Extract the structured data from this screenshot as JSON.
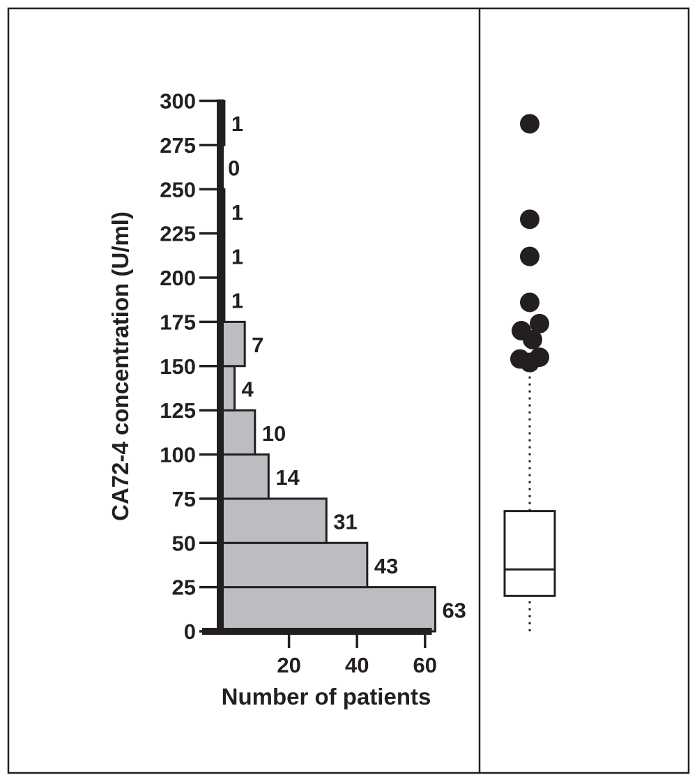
{
  "chart_data": [
    {
      "type": "bar",
      "orientation": "horizontal",
      "title": "",
      "xlabel": "Number of patients",
      "ylabel": "CA72-4 concentration (U/ml)",
      "bins": [
        {
          "from": 0,
          "to": 25,
          "count": 63,
          "label": "63"
        },
        {
          "from": 25,
          "to": 50,
          "count": 43,
          "label": "43"
        },
        {
          "from": 50,
          "to": 75,
          "count": 31,
          "label": "31"
        },
        {
          "from": 75,
          "to": 100,
          "count": 14,
          "label": "14"
        },
        {
          "from": 100,
          "to": 125,
          "count": 10,
          "label": "10"
        },
        {
          "from": 125,
          "to": 150,
          "count": 4,
          "label": "4"
        },
        {
          "from": 150,
          "to": 175,
          "count": 7,
          "label": "7"
        },
        {
          "from": 175,
          "to": 200,
          "count": 1,
          "label": "1"
        },
        {
          "from": 200,
          "to": 225,
          "count": 1,
          "label": "1"
        },
        {
          "from": 225,
          "to": 250,
          "count": 1,
          "label": "1"
        },
        {
          "from": 250,
          "to": 275,
          "count": 0,
          "label": "0"
        },
        {
          "from": 275,
          "to": 300,
          "count": 1,
          "label": "1"
        }
      ],
      "xticks": [
        "20",
        "40",
        "60"
      ],
      "yticks": [
        "0",
        "25",
        "50",
        "75",
        "100",
        "125",
        "150",
        "175",
        "200",
        "225",
        "250",
        "275",
        "300"
      ],
      "xlim": [
        0,
        64
      ],
      "ylim": [
        0,
        300
      ],
      "bar_color": "#bcbdc0",
      "grid": false
    },
    {
      "type": "box",
      "title": "",
      "ylim": [
        0,
        300
      ],
      "whisker_low": 0,
      "q1": 20,
      "median": 35,
      "q3": 68,
      "whisker_high": 152,
      "whisker_style": "dotted",
      "outliers": [
        287,
        233,
        212,
        186,
        174,
        170,
        165,
        155,
        154,
        152,
        152
      ],
      "marker_color": "#231f20"
    }
  ]
}
